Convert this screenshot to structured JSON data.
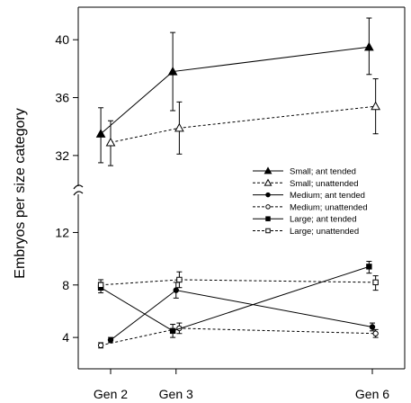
{
  "chart_data": {
    "type": "line",
    "ylabel": "Embryos per size category",
    "xlabel": "",
    "categories": [
      "Gen 2",
      "Gen 3",
      "Gen 6"
    ],
    "x_positions": [
      2,
      3,
      6
    ],
    "x_tick_labels": [
      "Gen 2",
      "Gen 3",
      "Gen 6"
    ],
    "axis_break": true,
    "upper_panel": {
      "ylim": [
        30.5,
        42
      ],
      "yticks": [
        "32",
        "36",
        "40"
      ]
    },
    "lower_panel": {
      "ylim": [
        2.5,
        14.5
      ],
      "yticks": [
        "4",
        "8",
        "12"
      ]
    },
    "legend_position": "middle-right",
    "series": [
      {
        "name": "Small; ant tended",
        "marker": "triangle-filled",
        "dash": false,
        "panel": "upper",
        "x": [
          1.85,
          2.95,
          5.95
        ],
        "y": [
          33.5,
          37.8,
          39.5
        ],
        "yerr_low": [
          31.5,
          35.1,
          37.6
        ],
        "yerr_high": [
          35.3,
          40.5,
          41.5
        ]
      },
      {
        "name": "Small; unattended",
        "marker": "triangle-open",
        "dash": true,
        "panel": "upper",
        "x": [
          2.0,
          3.05,
          6.05
        ],
        "y": [
          32.9,
          33.9,
          35.4
        ],
        "yerr_low": [
          31.3,
          32.1,
          33.5
        ],
        "yerr_high": [
          34.4,
          35.7,
          37.3
        ]
      },
      {
        "name": "Medium; ant tended",
        "marker": "circle-filled",
        "dash": false,
        "panel": "lower",
        "x": [
          2.0,
          3.0,
          6.0
        ],
        "y": [
          3.8,
          7.6,
          4.8
        ],
        "yerr_low": [
          3.6,
          7.0,
          4.5
        ],
        "yerr_high": [
          4.0,
          8.2,
          5.1
        ]
      },
      {
        "name": "Medium; unattended",
        "marker": "circle-open",
        "dash": true,
        "panel": "lower",
        "x": [
          1.85,
          3.05,
          6.05
        ],
        "y": [
          3.4,
          4.7,
          4.3
        ],
        "yerr_low": [
          3.2,
          4.3,
          4.0
        ],
        "yerr_high": [
          3.6,
          5.1,
          4.6
        ]
      },
      {
        "name": "Large; ant tended",
        "marker": "square-filled",
        "dash": false,
        "panel": "lower",
        "x": [
          1.85,
          2.95,
          5.95
        ],
        "y": [
          7.8,
          4.5,
          9.4
        ],
        "yerr_low": [
          7.4,
          4.0,
          8.9
        ],
        "yerr_high": [
          8.2,
          5.0,
          9.8
        ]
      },
      {
        "name": "Large; unattended",
        "marker": "square-open",
        "dash": true,
        "panel": "lower",
        "x": [
          1.85,
          3.05,
          6.05
        ],
        "y": [
          8.0,
          8.4,
          8.2
        ],
        "yerr_low": [
          7.6,
          7.8,
          7.6
        ],
        "yerr_high": [
          8.4,
          9.0,
          8.7
        ]
      }
    ]
  }
}
